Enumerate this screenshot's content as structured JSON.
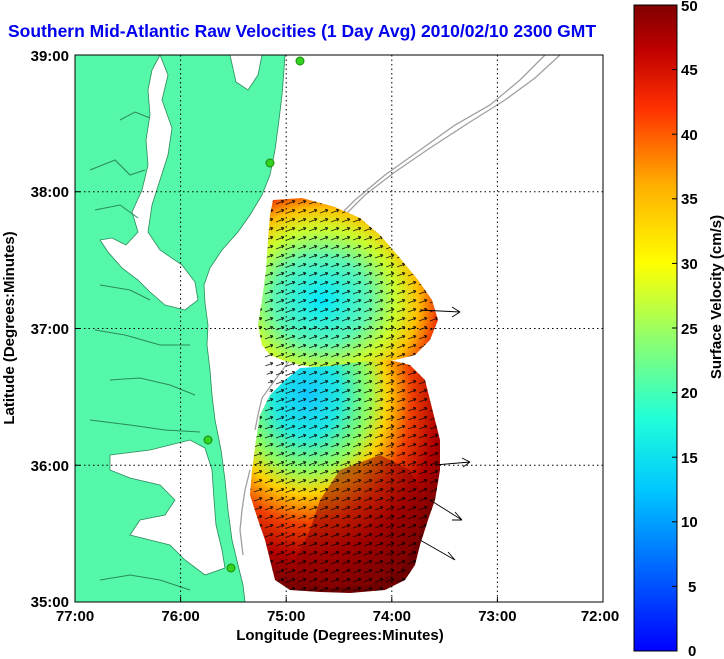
{
  "title": "Southern Mid-Atlantic Raw Velocities (1 Day Avg) 2010/02/10 2300 GMT",
  "xlabel": "Longitude (Degrees:Minutes)",
  "ylabel": "Latitude (Degrees:Minutes)",
  "colorbar_label": "Surface Velocity (cm/s)",
  "colors": {
    "land": "#55f7a8",
    "title": "#0000ee",
    "grid": "#000000",
    "bathymetry": "#a0a0a0",
    "station": "#32d21e"
  },
  "chart_data": {
    "type": "heatmap",
    "title": "Southern Mid-Atlantic Raw Velocities (1 Day Avg) 2010/02/10 2300 GMT",
    "xlabel": "Longitude (Degrees:Minutes)",
    "ylabel": "Latitude (Degrees:Minutes)",
    "xlim": [
      -77,
      -72
    ],
    "ylim": [
      35,
      39
    ],
    "x_ticks": [
      "77:00",
      "76:00",
      "75:00",
      "74:00",
      "73:00",
      "72:00"
    ],
    "y_ticks": [
      "39:00",
      "38:00",
      "37:00",
      "36:00",
      "35:00"
    ],
    "grid": true,
    "colorbar": {
      "label": "Surface Velocity (cm/s)",
      "min": 0,
      "max": 50,
      "ticks": [
        "50",
        "45",
        "40",
        "35",
        "30",
        "25",
        "20",
        "15",
        "10",
        "5",
        "0"
      ],
      "colormap": "jet"
    },
    "velocity_field": [
      {
        "lon": -74.9,
        "lat": 37.7,
        "speed": 36
      },
      {
        "lon": -74.6,
        "lat": 37.5,
        "speed": 32
      },
      {
        "lon": -74.3,
        "lat": 37.3,
        "speed": 38
      },
      {
        "lon": -74.8,
        "lat": 37.0,
        "speed": 12
      },
      {
        "lon": -74.9,
        "lat": 36.6,
        "speed": 9
      },
      {
        "lon": -74.5,
        "lat": 36.7,
        "speed": 25
      },
      {
        "lon": -74.2,
        "lat": 36.4,
        "speed": 48
      },
      {
        "lon": -75.1,
        "lat": 36.1,
        "speed": 22
      },
      {
        "lon": -74.7,
        "lat": 35.9,
        "speed": 40
      },
      {
        "lon": -74.3,
        "lat": 35.5,
        "speed": 50
      }
    ]
  }
}
